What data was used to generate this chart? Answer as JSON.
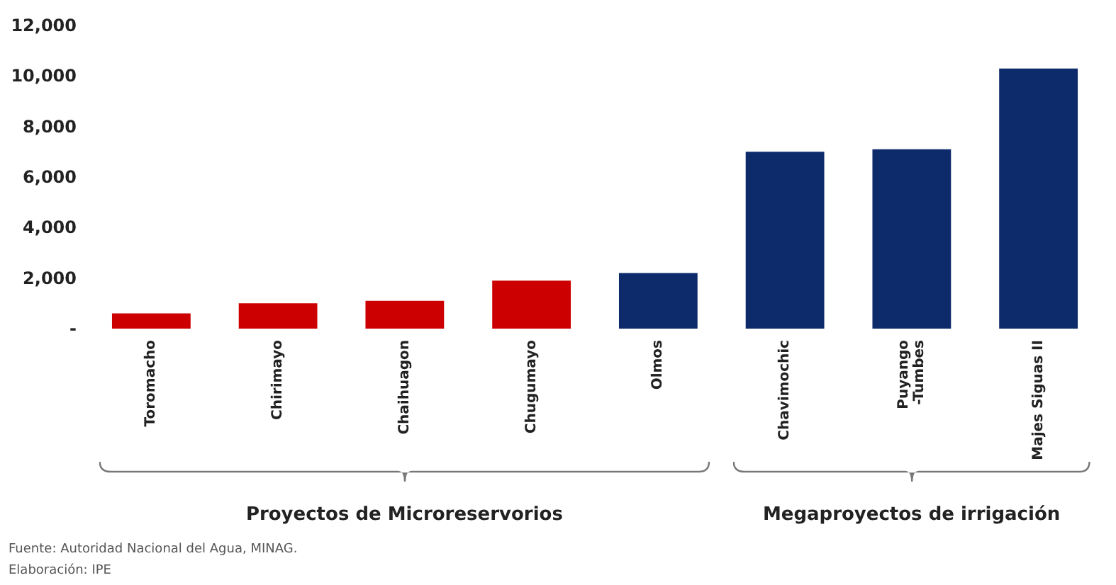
{
  "chart_data": {
    "type": "bar",
    "categories": [
      "Toromacho",
      "Chirimayo",
      "Chaihuagon",
      "Chugumayo",
      "Olmos",
      "Chavimochic",
      "Puyango\n-Tumbes",
      "Majes Siguas II"
    ],
    "values": [
      600,
      1000,
      1100,
      1900,
      2200,
      7000,
      7100,
      10300
    ],
    "colors": [
      "#cc0000",
      "#cc0000",
      "#cc0000",
      "#cc0000",
      "#0d2a6b",
      "#0d2a6b",
      "#0d2a6b",
      "#0d2a6b"
    ],
    "ylim": [
      0,
      12000
    ],
    "yticks": [
      {
        "value": 0,
        "label": "-"
      },
      {
        "value": 2000,
        "label": "2,000"
      },
      {
        "value": 4000,
        "label": "4,000"
      },
      {
        "value": 6000,
        "label": "6,000"
      },
      {
        "value": 8000,
        "label": "8,000"
      },
      {
        "value": 10000,
        "label": "10,000"
      },
      {
        "value": 12000,
        "label": "12,000"
      }
    ],
    "grid": false,
    "annotations": [
      "Proyectos de Microreservorios",
      "Megaproyectos de irrigación",
      "Fuente: Autoridad Nacional del Agua, MINAG.",
      "Elaboración: IPE"
    ]
  }
}
